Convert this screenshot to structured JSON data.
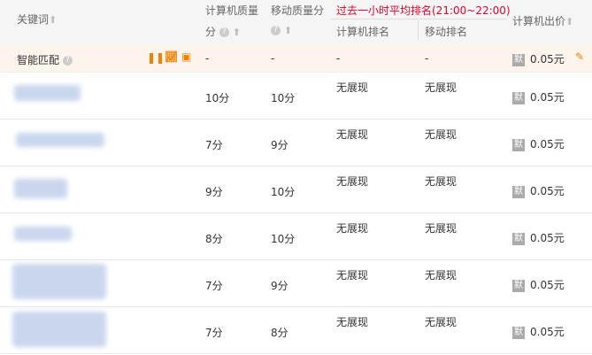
{
  "header": {
    "keyword": "关键词",
    "pc_quality": "计算机质量",
    "pc_quality_2": "分",
    "mobile_quality": "移动质量分",
    "rank_group": "过去一小时平均排名(21:00~22:00)",
    "pc_rank": "计算机排名",
    "mobile_rank": "移动排名",
    "pc_bid": "计算机出价",
    "rank_group_color": "#e4002b"
  },
  "smart": {
    "label": "智能匹配",
    "pc_quality": "-",
    "mobile_quality": "-",
    "pc_rank": "-",
    "mobile_rank": "-",
    "bid_icon": "默",
    "bid": "0.05元"
  },
  "rows": [
    {
      "pc_quality": "10分",
      "mobile_quality": "10分",
      "pc_rank": "无展现",
      "mobile_rank": "无展现",
      "bid_icon": "默",
      "bid": "0.05元"
    },
    {
      "pc_quality": "7分",
      "mobile_quality": "9分",
      "pc_rank": "无展现",
      "mobile_rank": "无展现",
      "bid_icon": "默",
      "bid": "0.05元"
    },
    {
      "pc_quality": "9分",
      "mobile_quality": "10分",
      "pc_rank": "无展现",
      "mobile_rank": "无展现",
      "bid_icon": "默",
      "bid": "0.05元"
    },
    {
      "pc_quality": "8分",
      "mobile_quality": "10分",
      "pc_rank": "无展现",
      "mobile_rank": "无展现",
      "bid_icon": "默",
      "bid": "0.05元"
    },
    {
      "pc_quality": "7分",
      "mobile_quality": "9分",
      "pc_rank": "无展现",
      "mobile_rank": "无展现",
      "bid_icon": "默",
      "bid": "0.05元"
    },
    {
      "pc_quality": "7分",
      "mobile_quality": "8分",
      "pc_rank": "无展现",
      "mobile_rank": "无展现",
      "bid_icon": "默",
      "bid": "0.05元"
    }
  ]
}
